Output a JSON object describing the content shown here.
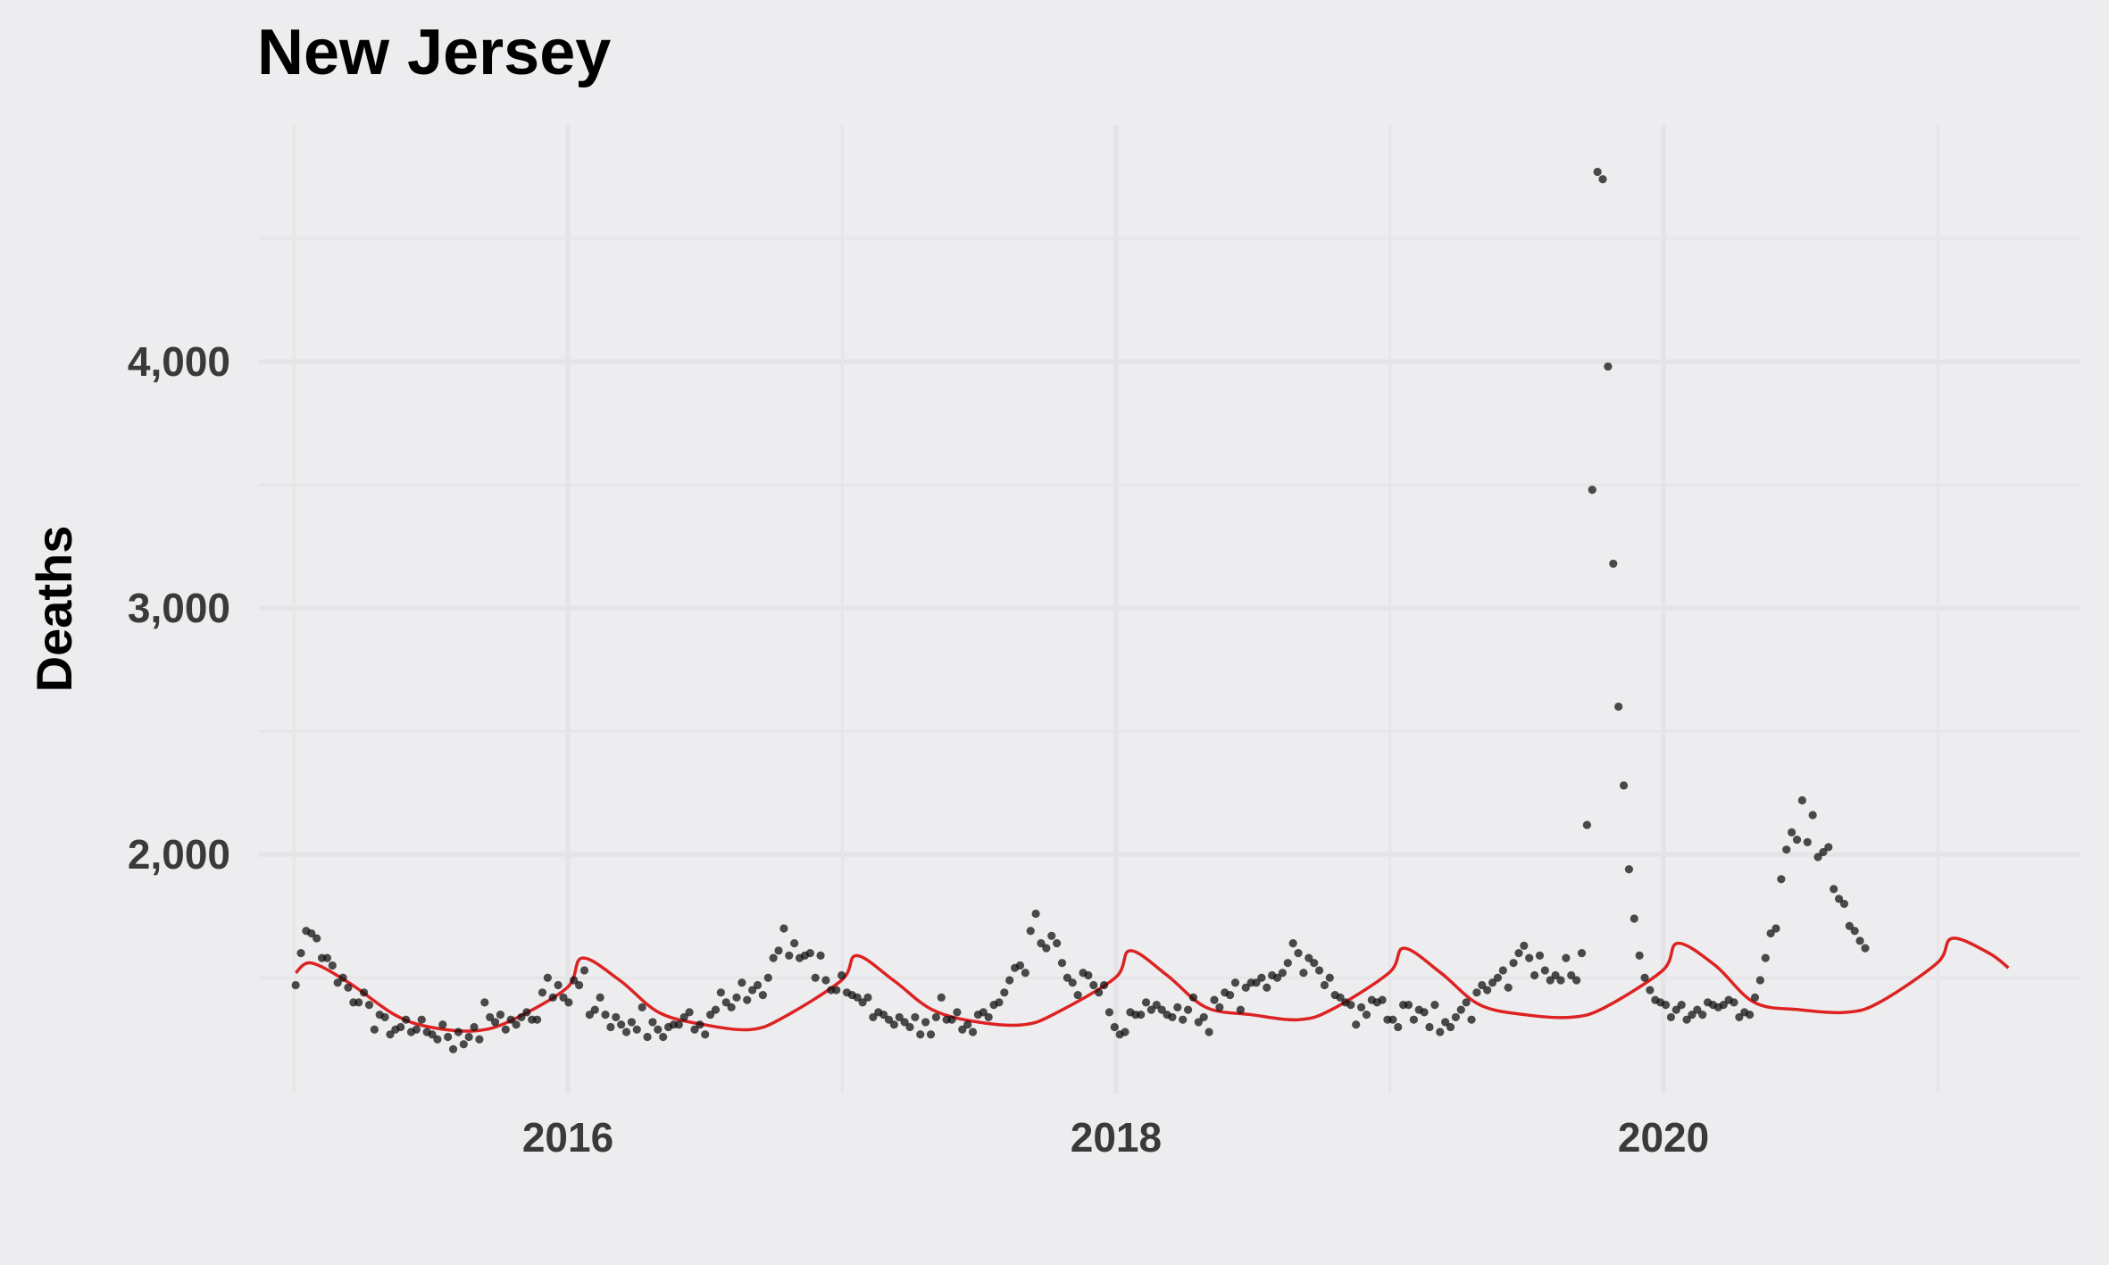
{
  "chart_data": {
    "type": "scatter",
    "title": "New Jersey",
    "xlabel": "",
    "ylabel": "Deaths",
    "xlim": [
      "2014-11-15",
      "2021-07-10"
    ],
    "ylim": [
      1030,
      4960
    ],
    "x_ticks": [
      {
        "label": "2016",
        "date": "2016-01-01"
      },
      {
        "label": "2018",
        "date": "2018-01-01"
      },
      {
        "label": "2020",
        "date": "2020-01-01"
      }
    ],
    "y_ticks": [
      {
        "label": "2,000",
        "value": 2000
      },
      {
        "label": "3,000",
        "value": 3000
      },
      {
        "label": "4,000",
        "value": 4000
      }
    ],
    "grid": true,
    "legend": "none",
    "colors": {
      "background": "#ededef",
      "points": "#111111",
      "trend": "#dd2222"
    },
    "series": [
      {
        "kind": "points",
        "start_date": "2015-01-03",
        "interval_days": 7,
        "values": [
          1470,
          1600,
          1690,
          1680,
          1660,
          1580,
          1580,
          1550,
          1480,
          1500,
          1460,
          1400,
          1400,
          1440,
          1390,
          1290,
          1350,
          1340,
          1270,
          1290,
          1300,
          1330,
          1280,
          1290,
          1330,
          1280,
          1270,
          1250,
          1310,
          1260,
          1210,
          1280,
          1230,
          1260,
          1300,
          1250,
          1400,
          1340,
          1320,
          1350,
          1290,
          1330,
          1310,
          1340,
          1360,
          1330,
          1330,
          1440,
          1500,
          1420,
          1470,
          1420,
          1400,
          1490,
          1470,
          1530,
          1350,
          1370,
          1420,
          1350,
          1300,
          1340,
          1310,
          1280,
          1320,
          1290,
          1380,
          1260,
          1320,
          1290,
          1260,
          1300,
          1310,
          1310,
          1340,
          1360,
          1290,
          1310,
          1270,
          1350,
          1370,
          1440,
          1400,
          1380,
          1420,
          1480,
          1410,
          1450,
          1470,
          1430,
          1500,
          1580,
          1610,
          1700,
          1590,
          1640,
          1580,
          1590,
          1600,
          1500,
          1590,
          1490,
          1450,
          1450,
          1510,
          1440,
          1430,
          1420,
          1400,
          1420,
          1340,
          1360,
          1350,
          1330,
          1310,
          1340,
          1320,
          1300,
          1340,
          1270,
          1320,
          1270,
          1340,
          1420,
          1330,
          1330,
          1360,
          1290,
          1310,
          1280,
          1350,
          1360,
          1340,
          1390,
          1400,
          1440,
          1490,
          1540,
          1550,
          1520,
          1690,
          1760,
          1640,
          1620,
          1670,
          1640,
          1560,
          1500,
          1480,
          1430,
          1520,
          1510,
          1470,
          1440,
          1470,
          1360,
          1300,
          1270,
          1280,
          1360,
          1350,
          1350,
          1400,
          1370,
          1390,
          1370,
          1350,
          1340,
          1380,
          1330,
          1370,
          1420,
          1320,
          1340,
          1280,
          1410,
          1380,
          1440,
          1430,
          1480,
          1370,
          1460,
          1480,
          1480,
          1500,
          1460,
          1510,
          1500,
          1520,
          1560,
          1640,
          1600,
          1520,
          1580,
          1560,
          1530,
          1470,
          1500,
          1430,
          1420,
          1400,
          1390,
          1310,
          1380,
          1350,
          1410,
          1400,
          1410,
          1330,
          1330,
          1300,
          1390,
          1390,
          1330,
          1370,
          1360,
          1300,
          1390,
          1280,
          1320,
          1300,
          1340,
          1370,
          1400,
          1330,
          1440,
          1470,
          1450,
          1480,
          1500,
          1530,
          1460,
          1560,
          1600,
          1630,
          1580,
          1510,
          1590,
          1530,
          1490,
          1510,
          1490,
          1580,
          1510,
          1490,
          1600,
          2120,
          3480,
          4770,
          4740,
          3980,
          3180,
          2600,
          2280,
          1940,
          1740,
          1590,
          1500,
          1450,
          1410,
          1400,
          1390,
          1340,
          1370,
          1390,
          1330,
          1350,
          1370,
          1350,
          1400,
          1390,
          1380,
          1390,
          1410,
          1400,
          1340,
          1360,
          1350,
          1420,
          1490,
          1580,
          1680,
          1700,
          1900,
          2020,
          2090,
          2060,
          2220,
          2050,
          2160,
          1990,
          2010,
          2030,
          1860,
          1820,
          1800,
          1710,
          1690,
          1650,
          1620
        ]
      },
      {
        "kind": "trend",
        "knots": [
          [
            "2015-01-03",
            1520
          ],
          [
            "2015-01-24",
            1560
          ],
          [
            "2015-03-15",
            1480
          ],
          [
            "2015-05-15",
            1350
          ],
          [
            "2015-07-01",
            1300
          ],
          [
            "2015-09-01",
            1285
          ],
          [
            "2015-10-20",
            1330
          ],
          [
            "2015-12-31",
            1460
          ],
          [
            "2016-01-20",
            1580
          ],
          [
            "2016-03-10",
            1490
          ],
          [
            "2016-05-01",
            1360
          ],
          [
            "2016-06-30",
            1310
          ],
          [
            "2016-09-01",
            1290
          ],
          [
            "2016-10-15",
            1340
          ],
          [
            "2016-12-31",
            1490
          ],
          [
            "2017-01-20",
            1590
          ],
          [
            "2017-03-10",
            1490
          ],
          [
            "2017-05-01",
            1370
          ],
          [
            "2017-07-01",
            1320
          ],
          [
            "2017-09-01",
            1310
          ],
          [
            "2017-10-15",
            1360
          ],
          [
            "2017-12-31",
            1500
          ],
          [
            "2018-01-20",
            1610
          ],
          [
            "2018-03-10",
            1510
          ],
          [
            "2018-05-01",
            1380
          ],
          [
            "2018-07-01",
            1350
          ],
          [
            "2018-09-01",
            1330
          ],
          [
            "2018-10-15",
            1370
          ],
          [
            "2018-12-31",
            1520
          ],
          [
            "2019-01-20",
            1620
          ],
          [
            "2019-03-10",
            1520
          ],
          [
            "2019-05-01",
            1390
          ],
          [
            "2019-07-01",
            1350
          ],
          [
            "2019-09-01",
            1340
          ],
          [
            "2019-10-15",
            1380
          ],
          [
            "2019-12-31",
            1530
          ],
          [
            "2020-01-20",
            1640
          ],
          [
            "2020-03-10",
            1550
          ],
          [
            "2020-05-01",
            1400
          ],
          [
            "2020-07-01",
            1370
          ],
          [
            "2020-09-01",
            1360
          ],
          [
            "2020-10-15",
            1400
          ],
          [
            "2020-12-31",
            1560
          ],
          [
            "2021-01-20",
            1660
          ],
          [
            "2021-03-10",
            1600
          ],
          [
            "2021-04-05",
            1540
          ]
        ]
      }
    ]
  }
}
